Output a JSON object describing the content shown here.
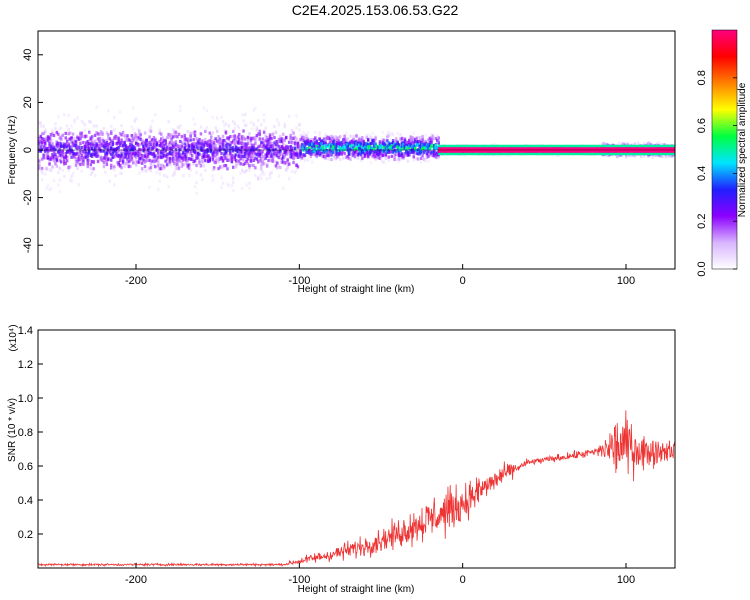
{
  "title": "C2E4.2025.153.06.53.G22",
  "chart_data": [
    {
      "type": "heatmap",
      "xlabel": "Height of straight line (km)",
      "ylabel": "Frequency (Hz)",
      "xlim": [
        -260,
        130
      ],
      "ylim": [
        -50,
        50
      ],
      "xticks": [
        -200,
        -100,
        0,
        100
      ],
      "yticks": [
        -40,
        -20,
        0,
        20,
        40
      ],
      "colorbar": {
        "label": "Normalized spectral amplitude",
        "range": [
          0,
          1
        ],
        "ticks": [
          0.0,
          0.2,
          0.4,
          0.6,
          0.8
        ],
        "tick_labels": [
          "0.0",
          "0.2",
          "0.4",
          "0.6",
          "0.8"
        ],
        "colors": [
          "#ffffff",
          "#d8b4fe",
          "#8b00ff",
          "#2020ff",
          "#00e5ff",
          "#00ff40",
          "#ffff00",
          "#ff8000",
          "#ff0000",
          "#ff0080"
        ]
      },
      "bands": [
        {
          "x_range": [
            -260,
            -100
          ],
          "center_hz": 0,
          "core_halfwidth_hz": 8,
          "spread_halfwidth_hz": 50,
          "peak_amplitude": 0.3
        },
        {
          "x_range": [
            -100,
            -15
          ],
          "center_hz": 1,
          "core_halfwidth_hz": 5,
          "spread_halfwidth_hz": 12,
          "peak_amplitude": 0.55
        },
        {
          "x_range": [
            -15,
            85
          ],
          "center_hz": 0,
          "core_halfwidth_hz": 1.5,
          "spread_halfwidth_hz": 3,
          "peak_amplitude": 1.0
        },
        {
          "x_range": [
            85,
            130
          ],
          "center_hz": 0,
          "core_halfwidth_hz": 3,
          "spread_halfwidth_hz": 5,
          "peak_amplitude": 0.6
        }
      ]
    },
    {
      "type": "line",
      "xlabel": "Height of straight line (km)",
      "ylabel": "SNR (10 * v/v)",
      "y_scale_factor": "(x10⁴)",
      "xlim": [
        -260,
        130
      ],
      "ylim": [
        0,
        1.4
      ],
      "xticks": [
        -200,
        -100,
        0,
        100
      ],
      "yticks": [
        0.2,
        0.4,
        0.6,
        0.8,
        1.0,
        1.2,
        1.4
      ],
      "series": [
        {
          "color": "#ee3333",
          "envelope": [
            {
              "x": -260,
              "mean": 0.02,
              "noise": 0.01
            },
            {
              "x": -110,
              "mean": 0.02,
              "noise": 0.01
            },
            {
              "x": -100,
              "mean": 0.04,
              "noise": 0.03
            },
            {
              "x": -80,
              "mean": 0.08,
              "noise": 0.06
            },
            {
              "x": -60,
              "mean": 0.13,
              "noise": 0.09
            },
            {
              "x": -40,
              "mean": 0.2,
              "noise": 0.12
            },
            {
              "x": -25,
              "mean": 0.27,
              "noise": 0.17
            },
            {
              "x": -10,
              "mean": 0.33,
              "noise": 0.2
            },
            {
              "x": 0,
              "mean": 0.38,
              "noise": 0.16
            },
            {
              "x": 10,
              "mean": 0.45,
              "noise": 0.14
            },
            {
              "x": 25,
              "mean": 0.55,
              "noise": 0.08
            },
            {
              "x": 40,
              "mean": 0.62,
              "noise": 0.03
            },
            {
              "x": 60,
              "mean": 0.65,
              "noise": 0.03
            },
            {
              "x": 80,
              "mean": 0.68,
              "noise": 0.04
            },
            {
              "x": 88,
              "mean": 0.7,
              "noise": 0.1
            },
            {
              "x": 95,
              "mean": 0.72,
              "noise": 0.3
            },
            {
              "x": 102,
              "mean": 0.72,
              "noise": 0.25
            },
            {
              "x": 112,
              "mean": 0.68,
              "noise": 0.14
            },
            {
              "x": 130,
              "mean": 0.7,
              "noise": 0.08
            }
          ]
        }
      ]
    }
  ]
}
